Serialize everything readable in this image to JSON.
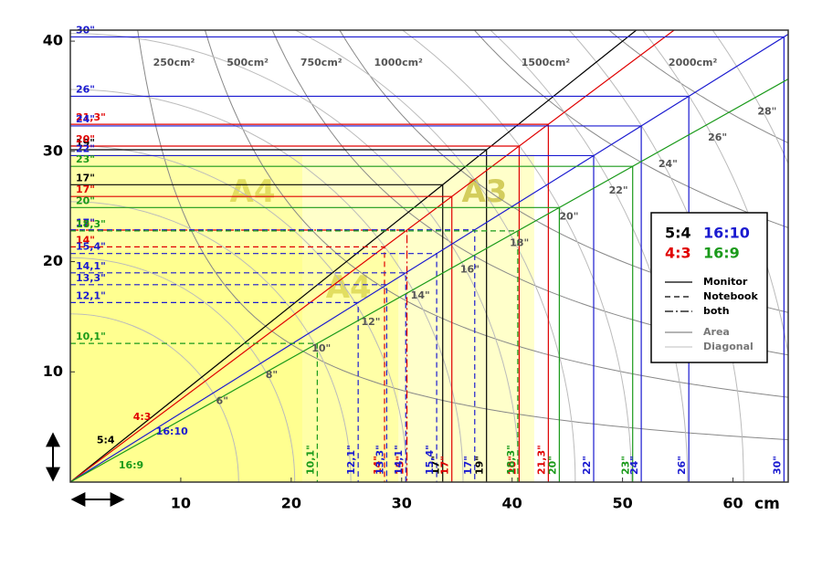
{
  "chart_data": {
    "type": "screen-sizes",
    "x_label": "cm",
    "xlim": [
      0,
      65
    ],
    "ylim": [
      0,
      41
    ],
    "xticks": [
      10,
      20,
      30,
      40,
      50,
      60
    ],
    "yticks": [
      10,
      20,
      30,
      40
    ],
    "grid": false,
    "papers": [
      {
        "label": "A4",
        "width": 21,
        "height": 29.7
      },
      {
        "label": "A4",
        "width": 29.7,
        "height": 21
      },
      {
        "label": "A3",
        "width": 42,
        "height": 29.7
      }
    ],
    "area_curves": {
      "values": [
        250,
        500,
        750,
        1000,
        1500,
        2000
      ],
      "labels": [
        "250cm²",
        "500cm²",
        "750cm²",
        "1000cm²",
        "1500cm²",
        "2000cm²"
      ]
    },
    "diagonals": {
      "values": [
        6,
        8,
        10,
        12,
        14,
        16,
        18,
        20,
        22,
        24,
        26,
        28
      ],
      "labels": [
        "6\"",
        "8\"",
        "10\"",
        "12\"",
        "14\"",
        "16\"",
        "18\"",
        "20\"",
        "22\"",
        "24\"",
        "26\"",
        "28\""
      ]
    },
    "line_styles": [
      "Monitor",
      "Notebook",
      "both"
    ],
    "curve_legend": [
      "Area",
      "Diagonal"
    ],
    "series": [
      {
        "name": "5:4",
        "color": "#000000",
        "values": [
          17,
          19
        ],
        "value_labels": [
          "17\"",
          "19\""
        ],
        "kinds": [
          "Monitor",
          "Monitor"
        ]
      },
      {
        "name": "4:3",
        "color": "#e00000",
        "values": [
          14,
          15,
          17,
          20,
          21.3
        ],
        "value_labels": [
          "14\"",
          "15\"",
          "17\"",
          "20\"",
          "21,3\""
        ],
        "kinds": [
          "Notebook",
          "both",
          "Monitor",
          "Monitor",
          "Monitor"
        ]
      },
      {
        "name": "16:10",
        "color": "#1a1ad0",
        "values": [
          12.1,
          13.3,
          14.1,
          15.4,
          17,
          22,
          24,
          26,
          30
        ],
        "value_labels": [
          "12,1\"",
          "13,3\"",
          "14,1\"",
          "15,4\"",
          "17\"",
          "22\"",
          "24\"",
          "26\"",
          "30\""
        ],
        "kinds": [
          "Notebook",
          "Notebook",
          "Notebook",
          "Notebook",
          "Notebook",
          "Monitor",
          "Monitor",
          "Monitor",
          "Monitor"
        ]
      },
      {
        "name": "16:9",
        "color": "#1a9a1a",
        "values": [
          10.1,
          18.3,
          20,
          23
        ],
        "value_labels": [
          "10,1\"",
          "18,3\"",
          "20\"",
          "23\""
        ],
        "kinds": [
          "Notebook",
          "Notebook",
          "Monitor",
          "Monitor"
        ]
      }
    ]
  }
}
